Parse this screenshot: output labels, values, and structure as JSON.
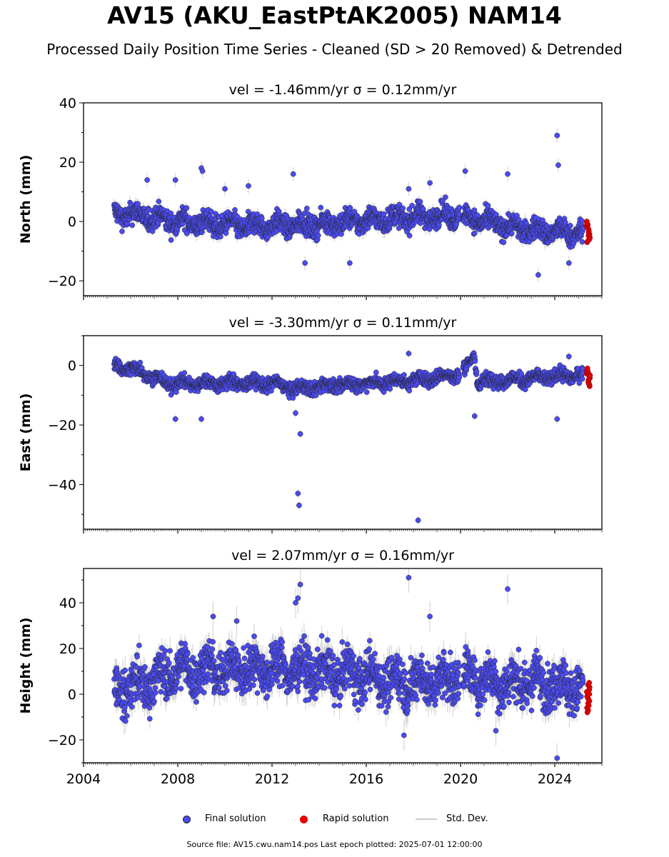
{
  "page": {
    "title": "AV15 (AKU_EastPtAK2005) NAM14",
    "subtitle": "Processed Daily Position Time Series - Cleaned (SD > 20 Removed) & Detrended",
    "footer": "Source file: AV15.cwu.nam14.pos  Last epoch plotted: 2025-07-01 12:00:00"
  },
  "legend": {
    "final": "Final solution",
    "rapid": "Rapid solution",
    "stddev": "Std. Dev."
  },
  "colors": {
    "final": "#4b4bf0",
    "final_edge": "#222222",
    "rapid": "#e30000",
    "stddev": "#cccccc"
  },
  "chart_data": [
    {
      "type": "scatter",
      "title": "vel = -1.46mm/yr   σ = 0.12mm/yr",
      "ylabel": "North (mm)",
      "xlabel": "",
      "xlim": [
        2004,
        2026
      ],
      "ylim": [
        -25,
        40
      ],
      "yticks": [
        -20,
        0,
        20,
        40
      ],
      "xticks": [
        2004,
        2008,
        2012,
        2016,
        2020,
        2024
      ],
      "show_xtick_labels": false,
      "grid": false,
      "base_segments": [
        [
          2005.3,
          2.5
        ],
        [
          2006,
          2.5
        ],
        [
          2008,
          0
        ],
        [
          2011,
          -1.5
        ],
        [
          2014,
          -1
        ],
        [
          2016,
          0.5
        ],
        [
          2018,
          1.5
        ],
        [
          2020,
          2
        ],
        [
          2021,
          0
        ],
        [
          2023,
          -3
        ],
        [
          2025.2,
          -4
        ]
      ],
      "scatter_amplitude": 4,
      "gaps": [
        [
          2019.95,
          2020.1
        ]
      ],
      "outliers": [
        [
          2006.7,
          14
        ],
        [
          2007.9,
          14
        ],
        [
          2009.0,
          18
        ],
        [
          2009.05,
          17
        ],
        [
          2010.0,
          11
        ],
        [
          2011.0,
          12
        ],
        [
          2012.9,
          16
        ],
        [
          2013.4,
          -14
        ],
        [
          2015.3,
          -14
        ],
        [
          2017.8,
          11
        ],
        [
          2018.7,
          13
        ],
        [
          2020.2,
          17
        ],
        [
          2022.0,
          16
        ],
        [
          2023.3,
          -18
        ],
        [
          2024.1,
          29
        ],
        [
          2024.15,
          19
        ],
        [
          2024.6,
          -14
        ]
      ],
      "rapid": {
        "x_range": [
          2025.35,
          2025.5
        ],
        "y_range": [
          -7,
          0
        ]
      }
    },
    {
      "type": "scatter",
      "title": "vel = -3.30mm/yr   σ = 0.11mm/yr",
      "ylabel": "East (mm)",
      "xlabel": "",
      "xlim": [
        2004,
        2026
      ],
      "ylim": [
        -55,
        10
      ],
      "yticks": [
        -40,
        -20,
        0
      ],
      "xticks": [
        2004,
        2008,
        2012,
        2016,
        2020,
        2024
      ],
      "show_xtick_labels": false,
      "grid": false,
      "base_segments": [
        [
          2005.3,
          0
        ],
        [
          2006.5,
          -2
        ],
        [
          2007.5,
          -6
        ],
        [
          2010,
          -6
        ],
        [
          2012,
          -6
        ],
        [
          2013,
          -8
        ],
        [
          2014,
          -7
        ],
        [
          2016,
          -6
        ],
        [
          2018,
          -5
        ],
        [
          2020,
          -3
        ],
        [
          2020.6,
          3
        ],
        [
          2020.7,
          -5
        ],
        [
          2022,
          -5
        ],
        [
          2025.2,
          -3
        ]
      ],
      "scatter_amplitude": 2.5,
      "gaps": [
        [
          2019.95,
          2020.1
        ]
      ],
      "outliers": [
        [
          2007.9,
          -18
        ],
        [
          2009.0,
          -18
        ],
        [
          2013.1,
          -43
        ],
        [
          2013.15,
          -47
        ],
        [
          2013.2,
          -23
        ],
        [
          2013.0,
          -16
        ],
        [
          2017.8,
          4
        ],
        [
          2018.2,
          -52
        ],
        [
          2020.6,
          -17
        ],
        [
          2024.1,
          -18
        ],
        [
          2024.6,
          3
        ]
      ],
      "rapid": {
        "x_range": [
          2025.35,
          2025.5
        ],
        "y_range": [
          -7,
          -1
        ]
      }
    },
    {
      "type": "scatter",
      "title": "vel = 2.07mm/yr   σ = 0.16mm/yr",
      "ylabel": "Height (mm)",
      "xlabel": "",
      "xlim": [
        2004,
        2026
      ],
      "ylim": [
        -30,
        55
      ],
      "yticks": [
        -20,
        0,
        20,
        40
      ],
      "xticks": [
        2004,
        2008,
        2012,
        2016,
        2020,
        2024
      ],
      "show_xtick_labels": true,
      "grid": false,
      "base_segments": [
        [
          2005.3,
          2
        ],
        [
          2006,
          3
        ],
        [
          2008,
          10
        ],
        [
          2012,
          12
        ],
        [
          2014,
          10
        ],
        [
          2016,
          8
        ],
        [
          2018,
          5
        ],
        [
          2020,
          8
        ],
        [
          2022,
          5
        ],
        [
          2024,
          5
        ],
        [
          2025.2,
          2
        ]
      ],
      "scatter_amplitude": 11,
      "gaps": [
        [
          2019.95,
          2020.1
        ]
      ],
      "outliers": [
        [
          2013.1,
          42
        ],
        [
          2013.2,
          48
        ],
        [
          2013.0,
          40
        ],
        [
          2017.8,
          51
        ],
        [
          2018.7,
          34
        ],
        [
          2022.0,
          46
        ],
        [
          2024.1,
          -28
        ],
        [
          2009.5,
          34
        ],
        [
          2010.5,
          32
        ],
        [
          2021.5,
          -16
        ],
        [
          2017.6,
          -18
        ]
      ],
      "rapid": {
        "x_range": [
          2025.35,
          2025.5
        ],
        "y_range": [
          -8,
          5
        ]
      }
    }
  ]
}
